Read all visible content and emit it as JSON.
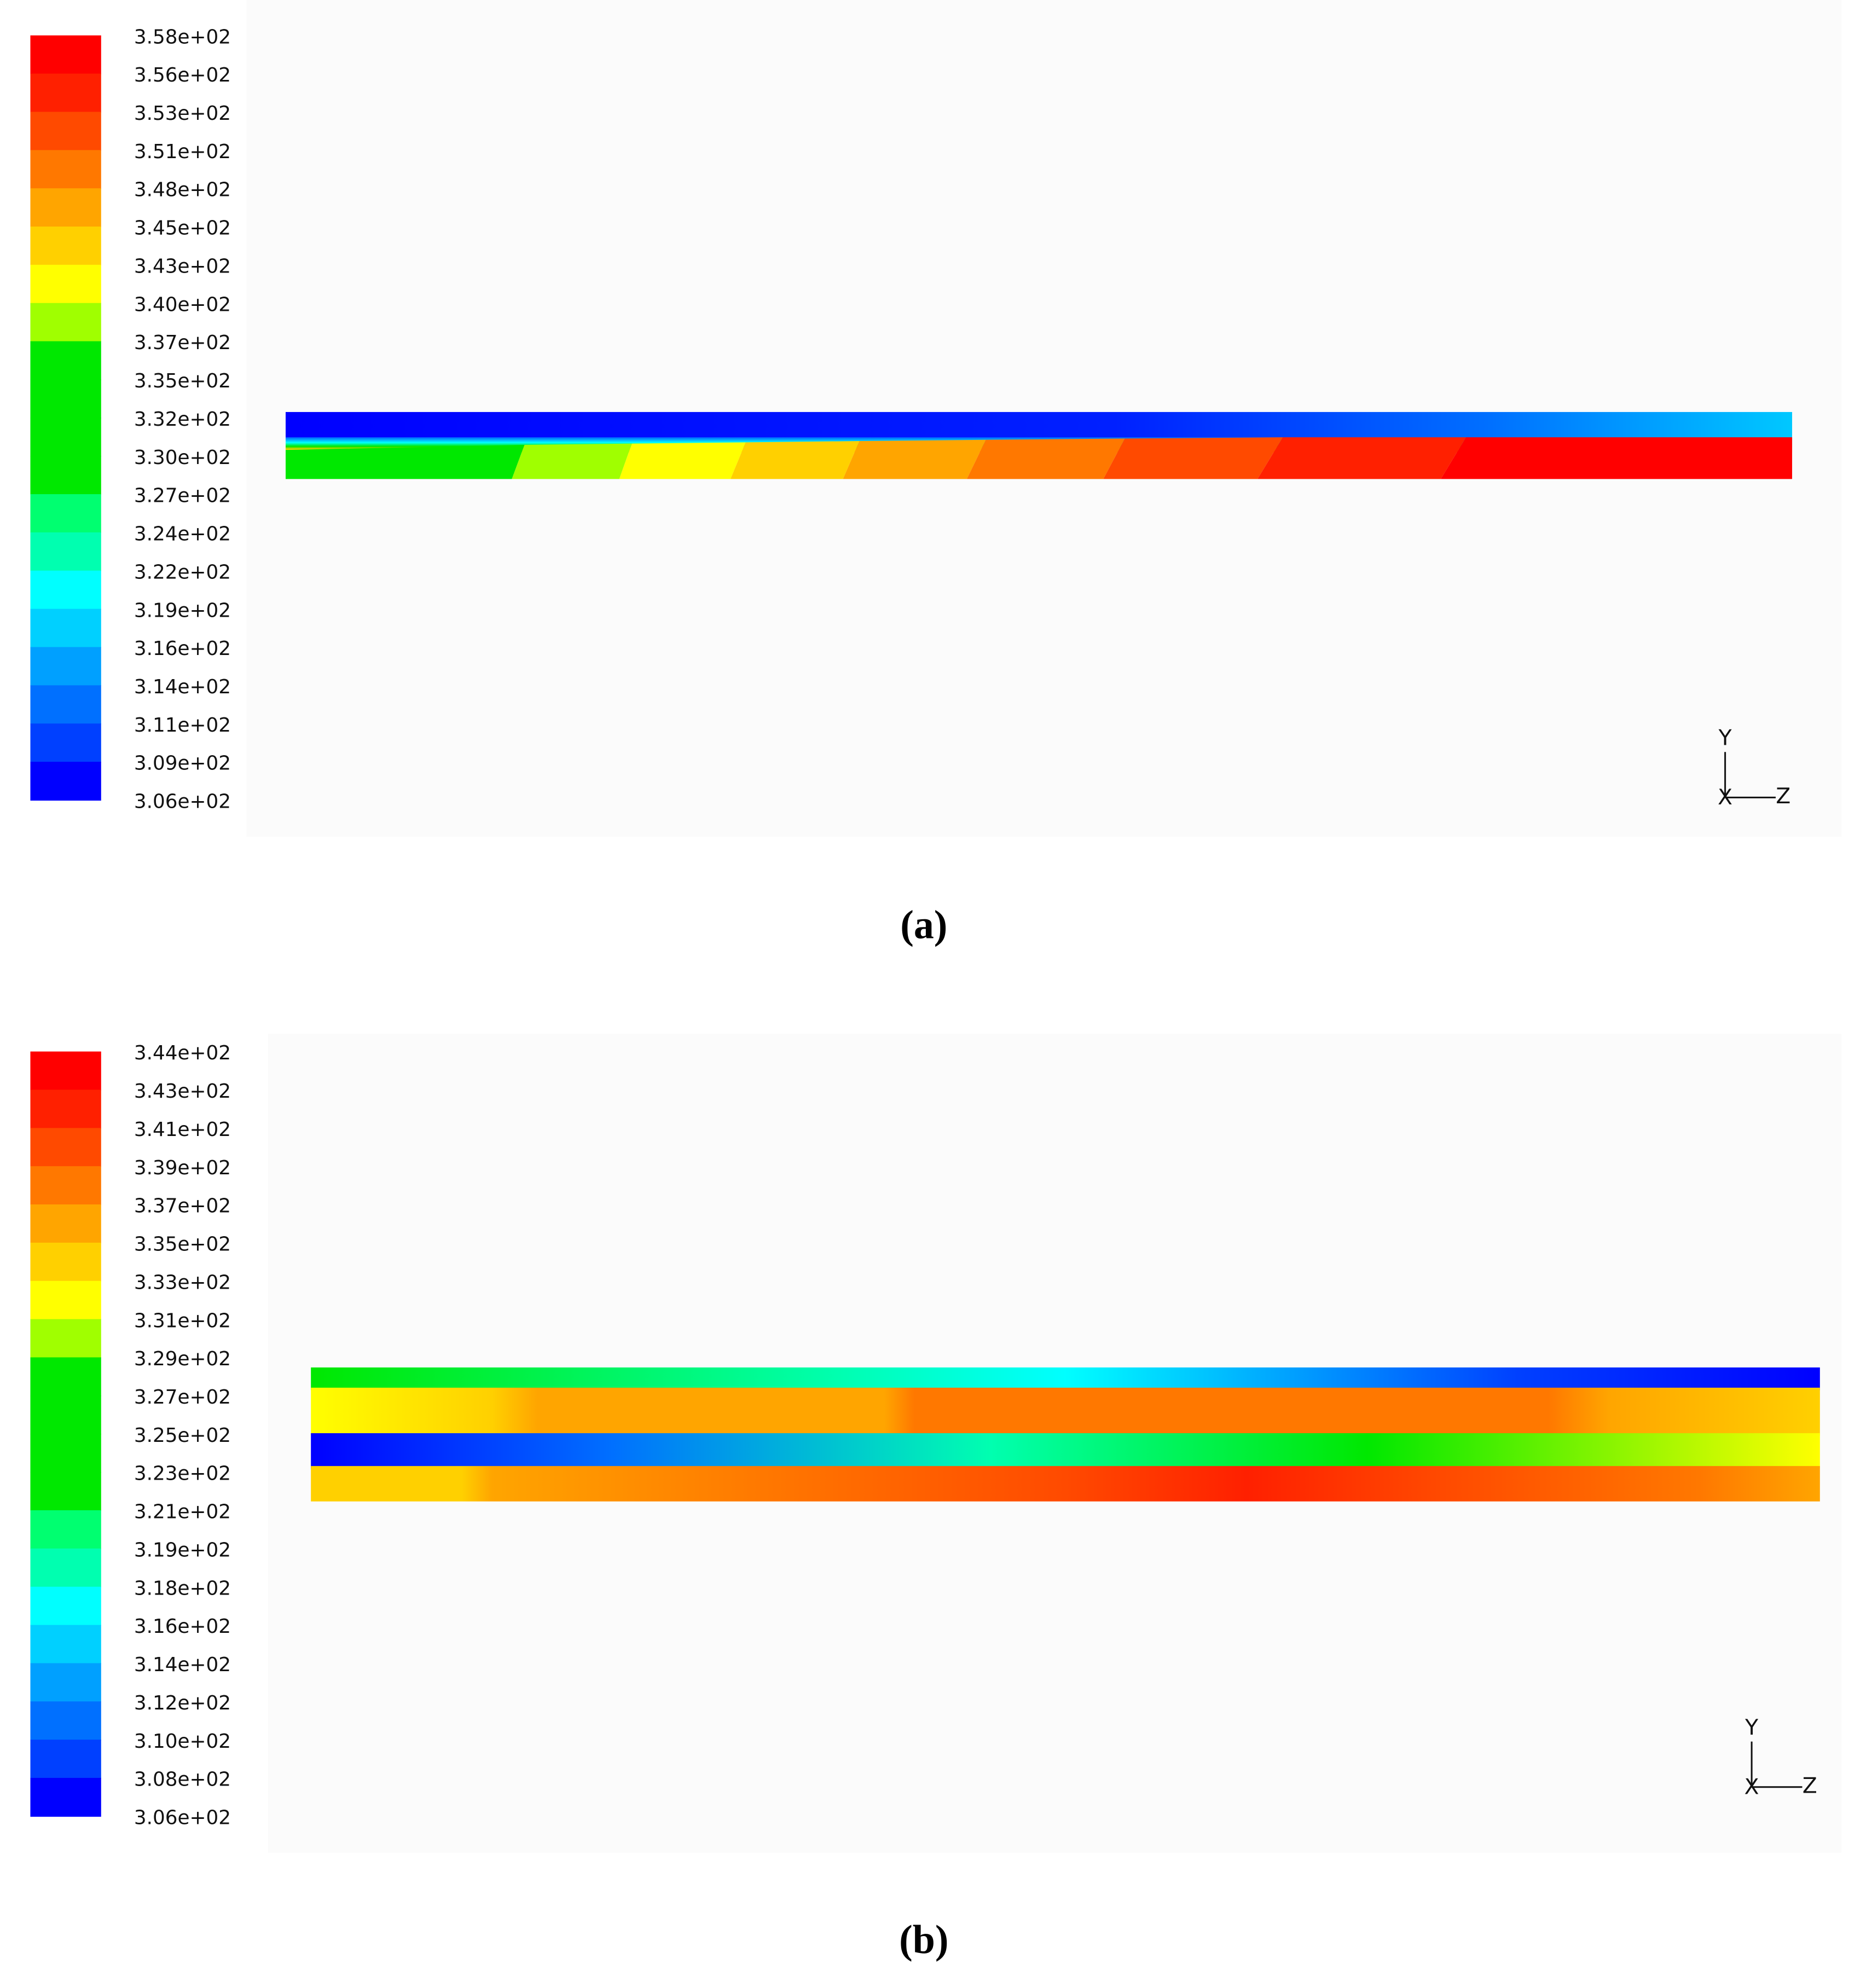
{
  "chart_data": [
    {
      "type": "contour",
      "colorbar": {
        "ticks": [
          {
            "value": 358,
            "label": "3.58e+02"
          },
          {
            "value": 356,
            "label": "3.56e+02"
          },
          {
            "value": 353,
            "label": "3.53e+02"
          },
          {
            "value": 351,
            "label": "3.51e+02"
          },
          {
            "value": 348,
            "label": "3.48e+02"
          },
          {
            "value": 345,
            "label": "3.45e+02"
          },
          {
            "value": 343,
            "label": "3.43e+02"
          },
          {
            "value": 340,
            "label": "3.40e+02"
          },
          {
            "value": 337,
            "label": "3.37e+02"
          },
          {
            "value": 335,
            "label": "3.35e+02"
          },
          {
            "value": 332,
            "label": "3.32e+02"
          },
          {
            "value": 330,
            "label": "3.30e+02"
          },
          {
            "value": 327,
            "label": "3.27e+02"
          },
          {
            "value": 324,
            "label": "3.24e+02"
          },
          {
            "value": 322,
            "label": "3.22e+02"
          },
          {
            "value": 319,
            "label": "3.19e+02"
          },
          {
            "value": 316,
            "label": "3.16e+02"
          },
          {
            "value": 314,
            "label": "3.14e+02"
          },
          {
            "value": 311,
            "label": "3.11e+02"
          },
          {
            "value": 309,
            "label": "3.09e+02"
          },
          {
            "value": 306,
            "label": "3.06e+02"
          }
        ],
        "colors": [
          "#ff0000",
          "#ff2000",
          "#ff4a00",
          "#ff7800",
          "#ffa500",
          "#ffd000",
          "#ffff00",
          "#a0ff00",
          "#00e800",
          "#00e800",
          "#00e800",
          "#00e800",
          "#00ff70",
          "#00ffb0",
          "#00ffff",
          "#00d0ff",
          "#00a0ff",
          "#0070ff",
          "#0040ff",
          "#0000ff"
        ]
      },
      "axes": {
        "y": "Y",
        "z": "Z",
        "x": "X"
      },
      "caption": "(a)"
    },
    {
      "type": "contour",
      "colorbar": {
        "ticks": [
          {
            "value": 344,
            "label": "3.44e+02"
          },
          {
            "value": 343,
            "label": "3.43e+02"
          },
          {
            "value": 341,
            "label": "3.41e+02"
          },
          {
            "value": 339,
            "label": "3.39e+02"
          },
          {
            "value": 337,
            "label": "3.37e+02"
          },
          {
            "value": 335,
            "label": "3.35e+02"
          },
          {
            "value": 333,
            "label": "3.33e+02"
          },
          {
            "value": 331,
            "label": "3.31e+02"
          },
          {
            "value": 329,
            "label": "3.29e+02"
          },
          {
            "value": 327,
            "label": "3.27e+02"
          },
          {
            "value": 325,
            "label": "3.25e+02"
          },
          {
            "value": 323,
            "label": "3.23e+02"
          },
          {
            "value": 321,
            "label": "3.21e+02"
          },
          {
            "value": 319,
            "label": "3.19e+02"
          },
          {
            "value": 318,
            "label": "3.18e+02"
          },
          {
            "value": 316,
            "label": "3.16e+02"
          },
          {
            "value": 314,
            "label": "3.14e+02"
          },
          {
            "value": 312,
            "label": "3.12e+02"
          },
          {
            "value": 310,
            "label": "3.10e+02"
          },
          {
            "value": 308,
            "label": "3.08e+02"
          },
          {
            "value": 306,
            "label": "3.06e+02"
          }
        ],
        "colors": [
          "#ff0000",
          "#ff2000",
          "#ff4a00",
          "#ff7800",
          "#ffa500",
          "#ffd000",
          "#ffff00",
          "#a0ff00",
          "#00e800",
          "#00e800",
          "#00e800",
          "#00e800",
          "#00ff70",
          "#00ffb0",
          "#00ffff",
          "#00d0ff",
          "#00a0ff",
          "#0070ff",
          "#0040ff",
          "#0000ff"
        ]
      },
      "axes": {
        "y": "Y",
        "z": "Z",
        "x": "X"
      },
      "caption": "(b)"
    }
  ]
}
